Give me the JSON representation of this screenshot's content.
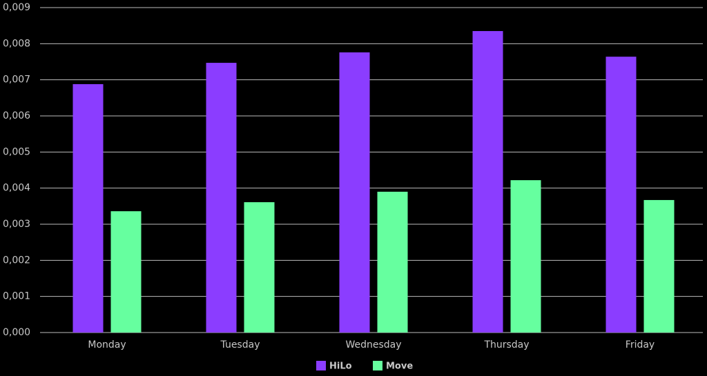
{
  "chart_data": {
    "type": "bar",
    "categories": [
      "Monday",
      "Tuesday",
      "Wednesday",
      "Thursday",
      "Friday"
    ],
    "series": [
      {
        "name": "HiLo",
        "color": "#8b3dff",
        "values": [
          0.00688,
          0.00747,
          0.00776,
          0.00835,
          0.00764
        ]
      },
      {
        "name": "Move",
        "color": "#66ff9f",
        "values": [
          0.00336,
          0.00361,
          0.0039,
          0.00422,
          0.00367
        ]
      }
    ],
    "ylim": [
      0,
      0.009
    ],
    "yticks": [
      {
        "value": 0,
        "label": "0,000"
      },
      {
        "value": 0.001,
        "label": "0,001"
      },
      {
        "value": 0.002,
        "label": "0,002"
      },
      {
        "value": 0.003,
        "label": "0,003"
      },
      {
        "value": 0.004,
        "label": "0,004"
      },
      {
        "value": 0.005,
        "label": "0,005"
      },
      {
        "value": 0.006,
        "label": "0,006"
      },
      {
        "value": 0.007,
        "label": "0,007"
      },
      {
        "value": 0.008,
        "label": "0,008"
      },
      {
        "value": 0.009,
        "label": "0,009"
      }
    ],
    "grid": true,
    "legend": "bottom"
  }
}
